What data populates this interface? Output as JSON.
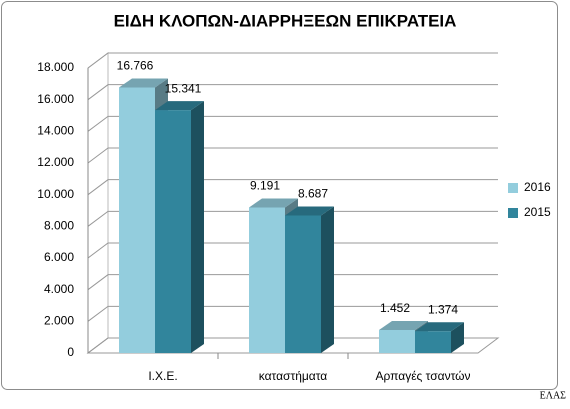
{
  "chart_data": {
    "type": "bar3d",
    "title": "ΕΙΔΗ ΚΛΟΠΩΝ-ΔΙΑΡΡΗΞΕΩΝ ΕΠΙΚΡΑΤΕΙΑ",
    "categories": [
      "Ι.Χ.Ε.",
      "καταστήματα",
      "Αρπαγές τσαντών"
    ],
    "series": [
      {
        "name": "2016",
        "color": "#93cddd",
        "values": [
          16766,
          9191,
          1452
        ],
        "value_labels": [
          "16.766",
          "9.191",
          "1.452"
        ]
      },
      {
        "name": "2015",
        "color": "#31859c",
        "values": [
          15341,
          8687,
          1374
        ],
        "value_labels": [
          "15.341",
          "8.687",
          "1.374"
        ]
      }
    ],
    "ylim": [
      0,
      18000
    ],
    "yticks": [
      0,
      {
        "value": 2000,
        "label": "2.000"
      },
      {
        "value": 4000,
        "label": "4.000"
      },
      {
        "value": 6000,
        "label": "6.000"
      },
      {
        "value": 8000,
        "label": "8.000"
      },
      {
        "value": 10000,
        "label": "10.000"
      },
      {
        "value": 12000,
        "label": "12.000"
      },
      {
        "value": 14000,
        "label": "14.000"
      },
      {
        "value": 16000,
        "label": "16.000"
      },
      {
        "value": 18000,
        "label": "18.000"
      }
    ],
    "grid": true,
    "legend": "right"
  },
  "watermark": "ΕΛΑΣ"
}
